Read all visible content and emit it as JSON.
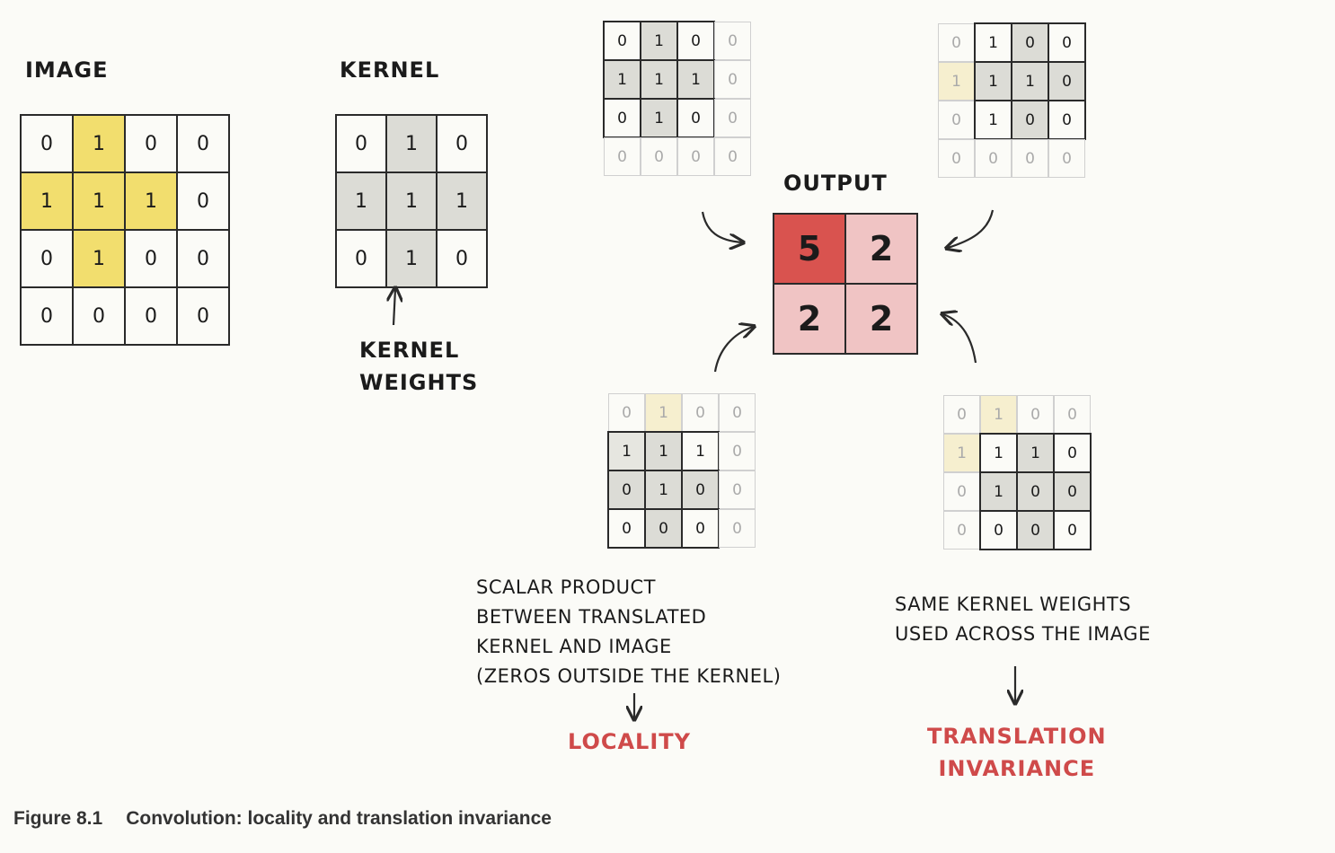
{
  "labels": {
    "image": "IMAGE",
    "kernel": "KERNEL",
    "output": "OUTPUT",
    "kernel_weights": [
      "KERNEL",
      "WEIGHTS"
    ],
    "locality_note": [
      "SCALAR PRODUCT",
      "BETWEEN TRANSLATED",
      "KERNEL AND IMAGE",
      "(ZEROS OUTSIDE THE KERNEL)"
    ],
    "locality": "LOCALITY",
    "invariance_note": [
      "SAME KERNEL WEIGHTS",
      "USED ACROSS THE IMAGE"
    ],
    "translation_invariance": [
      "TRANSLATION",
      "INVARIANCE"
    ]
  },
  "image": [
    [
      "0",
      "1",
      "0",
      "0"
    ],
    [
      "1",
      "1",
      "1",
      "0"
    ],
    [
      "0",
      "1",
      "0",
      "0"
    ],
    [
      "0",
      "0",
      "0",
      "0"
    ]
  ],
  "kernel": [
    [
      "0",
      "1",
      "0"
    ],
    [
      "1",
      "1",
      "1"
    ],
    [
      "0",
      "1",
      "0"
    ]
  ],
  "output": [
    [
      "5",
      "2"
    ],
    [
      "2",
      "2"
    ]
  ],
  "colors": {
    "highlight": "#f2de6e",
    "kernel_gray": "#dcdcd6",
    "output_high": "#d9534f",
    "output_low": "#f0c4c4",
    "accent_text": "#cf4a4a"
  },
  "caption": {
    "number": "Figure 8.1",
    "text": "Convolution: locality and translation invariance"
  }
}
